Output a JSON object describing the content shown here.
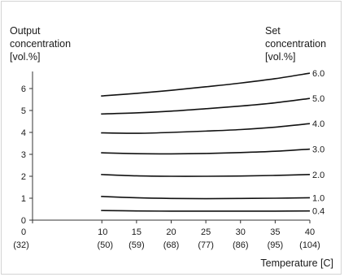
{
  "chart_data": {
    "type": "line",
    "y_title_lines": [
      "Output",
      "concentration",
      "[vol.%]"
    ],
    "right_title_lines": [
      "Set",
      "concentration",
      "[vol.%]"
    ],
    "xlabel": "Temperature [C]",
    "x_ticks": [
      {
        "x": 0,
        "top": "0",
        "bottom": "(32)"
      },
      {
        "x": 10,
        "top": "10",
        "bottom": "(50)"
      },
      {
        "x": 15,
        "top": "15",
        "bottom": "(59)"
      },
      {
        "x": 20,
        "top": "20",
        "bottom": "(68)"
      },
      {
        "x": 25,
        "top": "25",
        "bottom": "(77)"
      },
      {
        "x": 30,
        "top": "30",
        "bottom": "(86)"
      },
      {
        "x": 35,
        "top": "35",
        "bottom": "(95)"
      },
      {
        "x": 40,
        "top": "40",
        "bottom": "(104)"
      }
    ],
    "y_ticks": [
      "0",
      "1",
      "2",
      "3",
      "4",
      "5",
      "6"
    ],
    "xlim": [
      0,
      40
    ],
    "ylim": [
      0,
      6.8
    ],
    "grid": false,
    "x": [
      10,
      15,
      20,
      25,
      30,
      35,
      40
    ],
    "series": [
      {
        "name": "0.4",
        "values": [
          0.44,
          0.42,
          0.41,
          0.41,
          0.41,
          0.41,
          0.42
        ]
      },
      {
        "name": "1.0",
        "values": [
          1.08,
          1.02,
          0.99,
          0.98,
          0.99,
          1.0,
          1.02
        ]
      },
      {
        "name": "2.0",
        "values": [
          2.08,
          2.02,
          2.0,
          2.0,
          2.01,
          2.04,
          2.08
        ]
      },
      {
        "name": "3.0",
        "values": [
          3.07,
          3.03,
          3.02,
          3.04,
          3.08,
          3.14,
          3.24
        ]
      },
      {
        "name": "4.0",
        "values": [
          3.98,
          3.96,
          4.0,
          4.06,
          4.13,
          4.24,
          4.4
        ]
      },
      {
        "name": "5.0",
        "values": [
          4.84,
          4.89,
          4.97,
          5.08,
          5.2,
          5.35,
          5.55
        ]
      },
      {
        "name": "6.0",
        "values": [
          5.66,
          5.78,
          5.92,
          6.08,
          6.25,
          6.45,
          6.7
        ]
      }
    ]
  }
}
